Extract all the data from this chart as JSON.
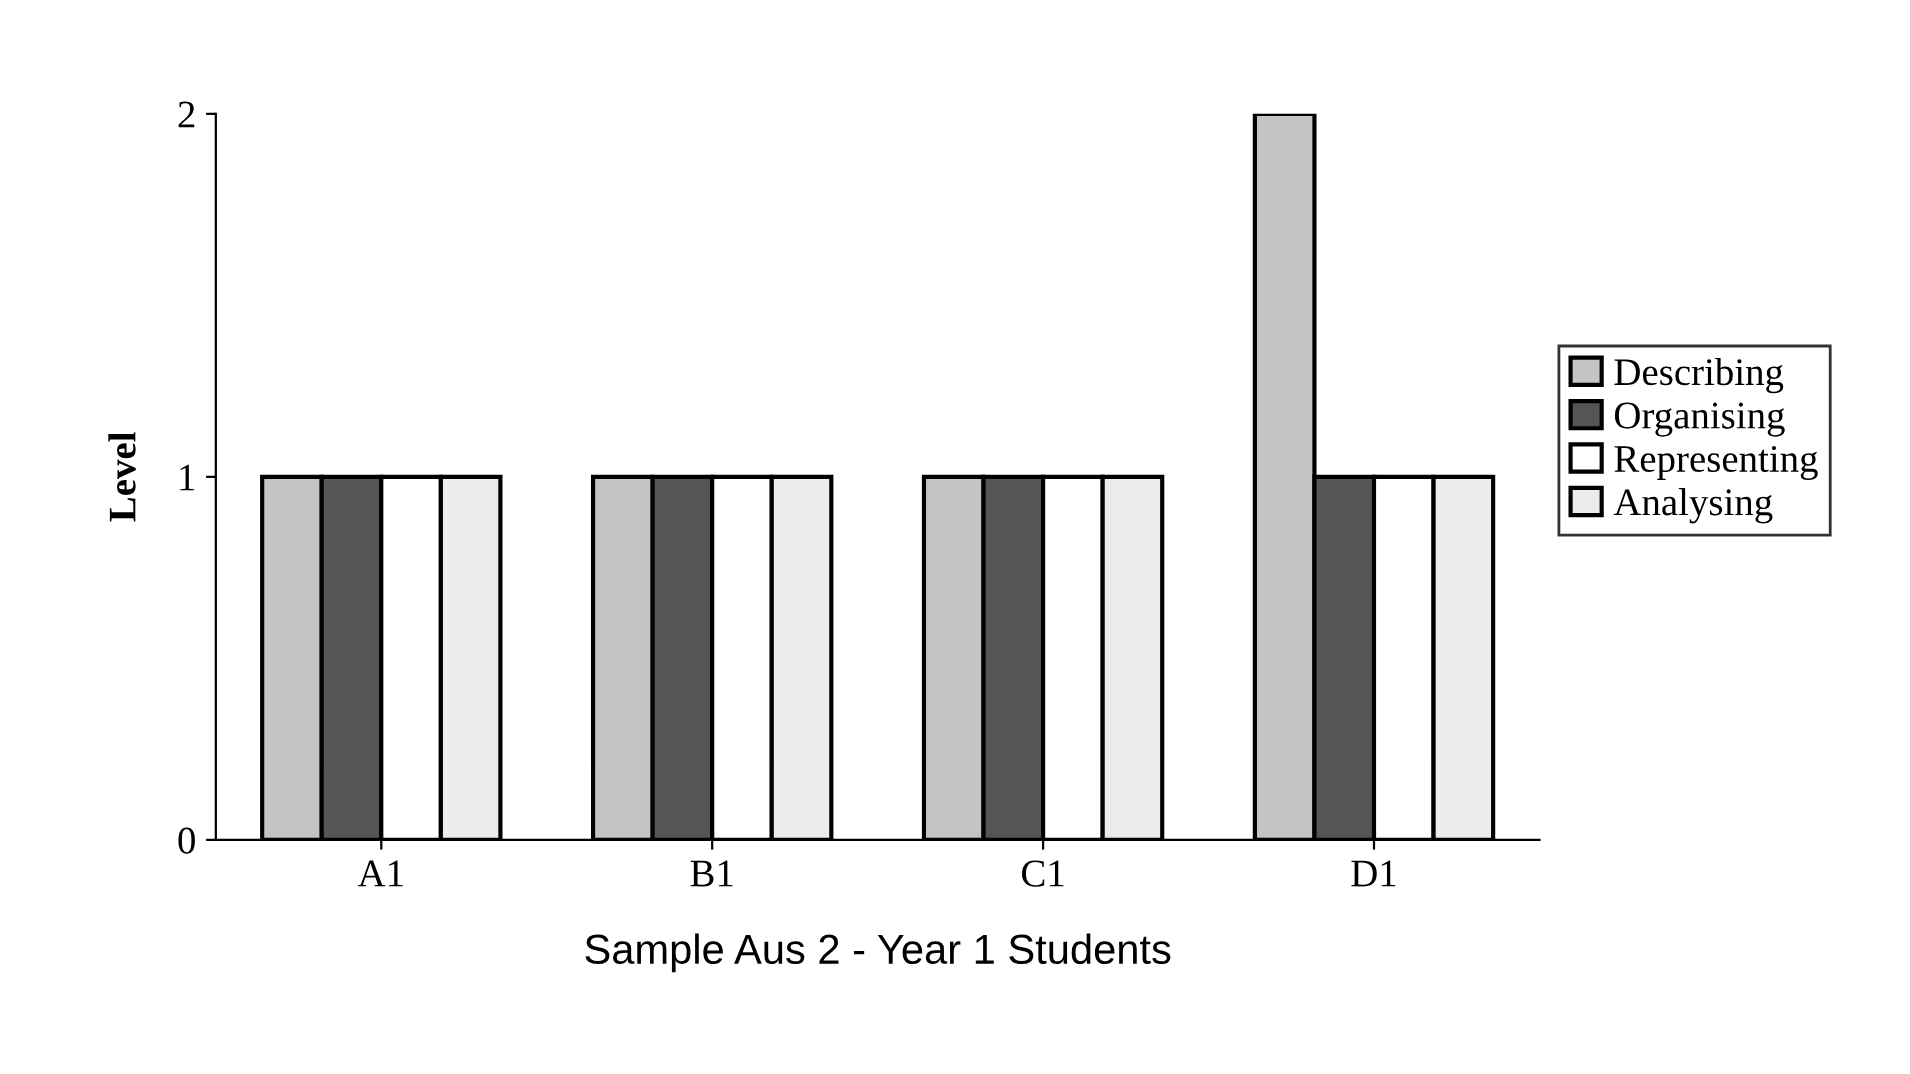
{
  "chart_data": {
    "type": "bar",
    "xlabel": "Sample Aus 2 - Year 1 Students",
    "ylabel": "Level",
    "categories": [
      "A1",
      "B1",
      "C1",
      "D1"
    ],
    "series": [
      {
        "name": "Describing",
        "color": "#c4c4c4",
        "values": [
          1,
          1,
          1,
          2
        ]
      },
      {
        "name": "Organising",
        "color": "#555555",
        "values": [
          1,
          1,
          1,
          1
        ]
      },
      {
        "name": "Representing",
        "color": "#ffffff",
        "values": [
          1,
          1,
          1,
          1
        ]
      },
      {
        "name": "Analysing",
        "color": "#ececec",
        "values": [
          1,
          1,
          1,
          1
        ]
      }
    ],
    "ylim": [
      0,
      2
    ],
    "yticks": [
      0,
      1,
      2
    ],
    "grid": false,
    "legend": "right"
  }
}
